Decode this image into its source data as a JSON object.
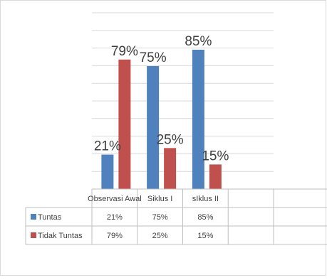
{
  "chart_data": {
    "type": "bar",
    "categories": [
      "Observasi Awal",
      "Siklus I",
      "sIklus II",
      ""
    ],
    "series": [
      {
        "name": "Tuntas",
        "color": "#4F81BD",
        "values": [
          21,
          75,
          85,
          null
        ],
        "labels": [
          "21%",
          "75%",
          "85%",
          ""
        ],
        "table": [
          "21%",
          "75%",
          "85%",
          ""
        ]
      },
      {
        "name": "Tidak Tuntas",
        "color": "#C0504D",
        "values": [
          79,
          25,
          15,
          null
        ],
        "labels": [
          "79%",
          "25%",
          "15%",
          ""
        ],
        "table": [
          "79%",
          "25%",
          "15%",
          ""
        ]
      }
    ],
    "ylim": [
      0,
      100
    ],
    "grid": true,
    "legend": "data table with legend keys"
  }
}
